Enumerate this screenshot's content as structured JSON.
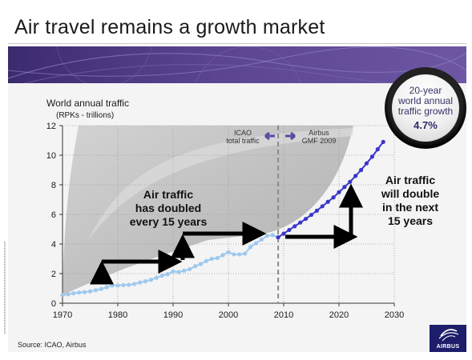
{
  "slide": {
    "title": "Air travel remains a growth market",
    "source": "Source: ICAO, Airbus",
    "logo_text": "AIRBUS"
  },
  "badge": {
    "text_line1": "20-year",
    "text_line2": "world annual",
    "text_line3": "traffic growth",
    "value": "4.7%"
  },
  "chart_data": {
    "type": "line",
    "title": "World annual traffic",
    "subtitle": "(RPKs - trillions)",
    "xlim": [
      1970,
      2030
    ],
    "ylim": [
      0,
      12
    ],
    "x_ticks": [
      1970,
      1980,
      1990,
      2000,
      2010,
      2020,
      2030
    ],
    "y_ticks": [
      0,
      2,
      4,
      6,
      8,
      10,
      12
    ],
    "grid": true,
    "divider_x": 2009,
    "series": [
      {
        "name": "ICAO total traffic",
        "color": "#9ec9ee",
        "x": [
          1970,
          1971,
          1972,
          1973,
          1974,
          1975,
          1976,
          1977,
          1978,
          1979,
          1980,
          1981,
          1982,
          1983,
          1984,
          1985,
          1986,
          1987,
          1988,
          1989,
          1990,
          1991,
          1992,
          1993,
          1994,
          1995,
          1996,
          1997,
          1998,
          1999,
          2000,
          2001,
          2002,
          2003,
          2004,
          2005,
          2006,
          2007,
          2008,
          2009
        ],
        "y": [
          0.55,
          0.6,
          0.67,
          0.72,
          0.75,
          0.8,
          0.88,
          0.96,
          1.08,
          1.2,
          1.2,
          1.22,
          1.24,
          1.3,
          1.4,
          1.48,
          1.58,
          1.72,
          1.86,
          1.96,
          2.15,
          2.1,
          2.2,
          2.3,
          2.5,
          2.65,
          2.85,
          3.0,
          3.05,
          3.25,
          3.45,
          3.3,
          3.3,
          3.35,
          3.8,
          4.05,
          4.3,
          4.55,
          4.6,
          4.45
        ]
      },
      {
        "name": "Airbus GMF 2009",
        "color": "#3a36c8",
        "x": [
          2009,
          2010,
          2011,
          2012,
          2013,
          2014,
          2015,
          2016,
          2017,
          2018,
          2019,
          2020,
          2021,
          2022,
          2023,
          2024,
          2025,
          2026,
          2027,
          2028
        ],
        "y": [
          4.45,
          4.7,
          4.95,
          5.2,
          5.45,
          5.7,
          5.97,
          6.25,
          6.55,
          6.85,
          7.15,
          7.5,
          7.85,
          8.2,
          8.6,
          9.0,
          9.45,
          9.9,
          10.4,
          10.9
        ]
      }
    ],
    "annotations": {
      "icao_label_line1": "ICAO",
      "icao_label_line2": "total traffic",
      "airbus_label_line1": "Airbus",
      "airbus_label_line2": "GMF 2009",
      "left_text": [
        "Air traffic",
        "has doubled",
        "every 15 years"
      ],
      "right_text": [
        "Air traffic",
        "will double",
        "in the next",
        "15 years"
      ]
    }
  }
}
